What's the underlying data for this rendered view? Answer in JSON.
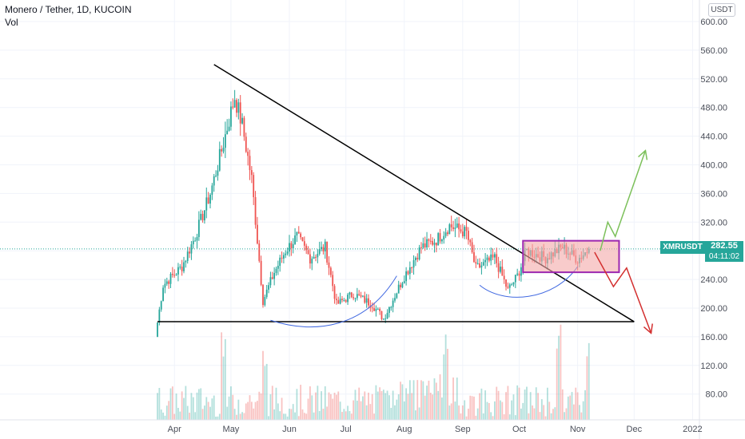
{
  "header": {
    "title": "Monero / Tether, 1D, KUCOIN",
    "indicator": "Vol"
  },
  "price_axis": {
    "unit": "USDT",
    "ticks": [
      "600.00",
      "560.00",
      "520.00",
      "480.00",
      "440.00",
      "400.00",
      "360.00",
      "320.00",
      "280.00",
      "240.00",
      "200.00",
      "160.00",
      "120.00",
      "80.00"
    ]
  },
  "time_axis": {
    "ticks": [
      "Apr",
      "May",
      "Jun",
      "Jul",
      "Aug",
      "Sep",
      "Oct",
      "Nov",
      "Dec",
      "2022"
    ]
  },
  "last_price": {
    "symbol": "XMRUSDT",
    "value": "282.55",
    "countdown": "04:11:02"
  },
  "colors": {
    "up": "#26a69a",
    "down": "#ef5350",
    "trendline": "#000000",
    "arc": "#4169e1",
    "box_fill": "#f4a9a8",
    "box_border": "#9c27b0",
    "arrow_up": "#7cc05a",
    "arrow_down": "#d32f2f"
  },
  "chart_data": {
    "type": "candlestick",
    "symbol": "XMRUSDT",
    "exchange": "KUCOIN",
    "interval": "1D",
    "ylim": [
      120,
      600
    ],
    "x_range": [
      "2021-03-23",
      "2022-01-10"
    ],
    "price_keypoints": [
      {
        "date": "2021-03-23",
        "close": 180
      },
      {
        "date": "2021-03-26",
        "close": 232
      },
      {
        "date": "2021-04-05",
        "close": 258
      },
      {
        "date": "2021-04-12",
        "close": 300
      },
      {
        "date": "2021-04-20",
        "close": 360
      },
      {
        "date": "2021-04-26",
        "close": 420
      },
      {
        "date": "2021-05-03",
        "close": 495
      },
      {
        "date": "2021-05-07",
        "close": 455
      },
      {
        "date": "2021-05-12",
        "close": 380
      },
      {
        "date": "2021-05-18",
        "close": 210
      },
      {
        "date": "2021-05-24",
        "close": 250
      },
      {
        "date": "2021-05-30",
        "close": 280
      },
      {
        "date": "2021-06-05",
        "close": 300
      },
      {
        "date": "2021-06-12",
        "close": 270
      },
      {
        "date": "2021-06-20",
        "close": 285
      },
      {
        "date": "2021-06-26",
        "close": 205
      },
      {
        "date": "2021-07-05",
        "close": 220
      },
      {
        "date": "2021-07-15",
        "close": 205
      },
      {
        "date": "2021-07-21",
        "close": 185
      },
      {
        "date": "2021-08-01",
        "close": 245
      },
      {
        "date": "2021-08-10",
        "close": 285
      },
      {
        "date": "2021-08-18",
        "close": 295
      },
      {
        "date": "2021-08-25",
        "close": 315
      },
      {
        "date": "2021-09-03",
        "close": 305
      },
      {
        "date": "2021-09-08",
        "close": 255
      },
      {
        "date": "2021-09-18",
        "close": 270
      },
      {
        "date": "2021-09-25",
        "close": 225
      },
      {
        "date": "2021-09-30",
        "close": 245
      },
      {
        "date": "2021-10-05",
        "close": 280
      },
      {
        "date": "2021-10-15",
        "close": 270
      },
      {
        "date": "2021-10-24",
        "close": 285
      },
      {
        "date": "2021-11-01",
        "close": 268
      },
      {
        "date": "2021-11-07",
        "close": 282.55
      }
    ],
    "volume_spikes": [
      "2021-04-27",
      "2021-05-19",
      "2021-08-23",
      "2021-10-22",
      "2021-11-07"
    ],
    "annotations": {
      "descending_trendline": [
        [
          "2021-04-22",
          540
        ],
        [
          "2021-12-01",
          181
        ]
      ],
      "support_line": [
        [
          "2021-03-23",
          181
        ],
        [
          "2021-12-01",
          181
        ]
      ],
      "rounded_bottom_arc": [
        [
          "2021-05-22",
          183
        ],
        [
          "2021-07-28",
          245
        ]
      ],
      "small_arc": [
        [
          "2021-09-10",
          232
        ],
        [
          "2021-11-01",
          258
        ]
      ],
      "consolidation_box": {
        "start": "2021-10-03",
        "end": "2021-11-23",
        "low": 250,
        "high": 294
      },
      "bull_path": [
        [
          "2021-11-13",
          280
        ],
        [
          "2021-11-17",
          320
        ],
        [
          "2021-11-21",
          300
        ],
        [
          "2021-12-07",
          420
        ]
      ],
      "bear_path": [
        [
          "2021-11-10",
          278
        ],
        [
          "2021-11-20",
          230
        ],
        [
          "2021-11-27",
          256
        ],
        [
          "2021-12-10",
          165
        ]
      ]
    }
  }
}
